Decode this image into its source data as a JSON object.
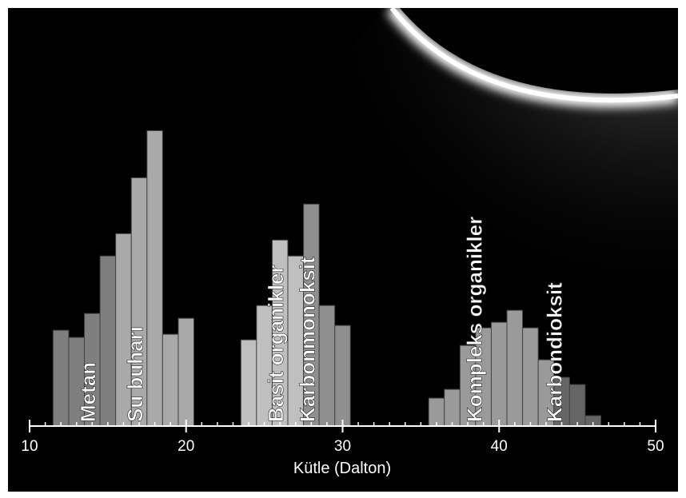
{
  "chart_data": {
    "type": "histogram",
    "xlabel": "Kütle (Dalton)",
    "xlim": [
      10,
      50
    ],
    "xticks": [
      10,
      20,
      30,
      40,
      50
    ],
    "xminorticks": [
      11,
      12,
      13,
      14,
      15,
      16,
      17,
      18,
      19,
      21,
      22,
      23,
      24,
      25,
      26,
      27,
      28,
      29,
      31,
      32,
      33,
      34,
      35,
      36,
      37,
      38,
      39,
      41,
      42,
      43,
      44,
      45,
      46,
      47,
      48,
      49
    ],
    "series": [
      {
        "name": "Metan",
        "color": "#8a8a8a",
        "bins": [
          11.5,
          12.5,
          13.5,
          14.5,
          15.5
        ],
        "values": [
          120,
          111,
          141,
          213
        ]
      },
      {
        "name": "Su buharı",
        "color": "#b8b8b8",
        "bins": [
          15.5,
          16.5,
          17.5,
          18.5,
          19.5,
          20.5
        ],
        "values": [
          241,
          311,
          370,
          115,
          135
        ]
      },
      {
        "name": "Basit organikler",
        "color": "#d0d0d0",
        "bins": [
          23.5,
          24.5,
          25.5,
          26.5,
          27.5
        ],
        "values": [
          108,
          151,
          233,
          213
        ]
      },
      {
        "name": "Karbonmonoksit",
        "color": "#9c9c9c",
        "bins": [
          27.5,
          28.5,
          29.5,
          30.5
        ],
        "values": [
          278,
          151,
          126
        ]
      },
      {
        "name": "Kompleks organikler",
        "color": "#a8a8a8",
        "bins": [
          35.5,
          36.5,
          37.5,
          38.5,
          39.5,
          40.5,
          41.5,
          42.5,
          43.5
        ],
        "values": [
          35,
          46,
          101,
          123,
          130,
          145,
          123,
          83
        ]
      },
      {
        "name": "Karbondioksit",
        "color": "#6e6e6e",
        "bins": [
          43.5,
          44.5,
          45.5,
          46.5
        ],
        "values": [
          61,
          52,
          13
        ]
      }
    ]
  }
}
